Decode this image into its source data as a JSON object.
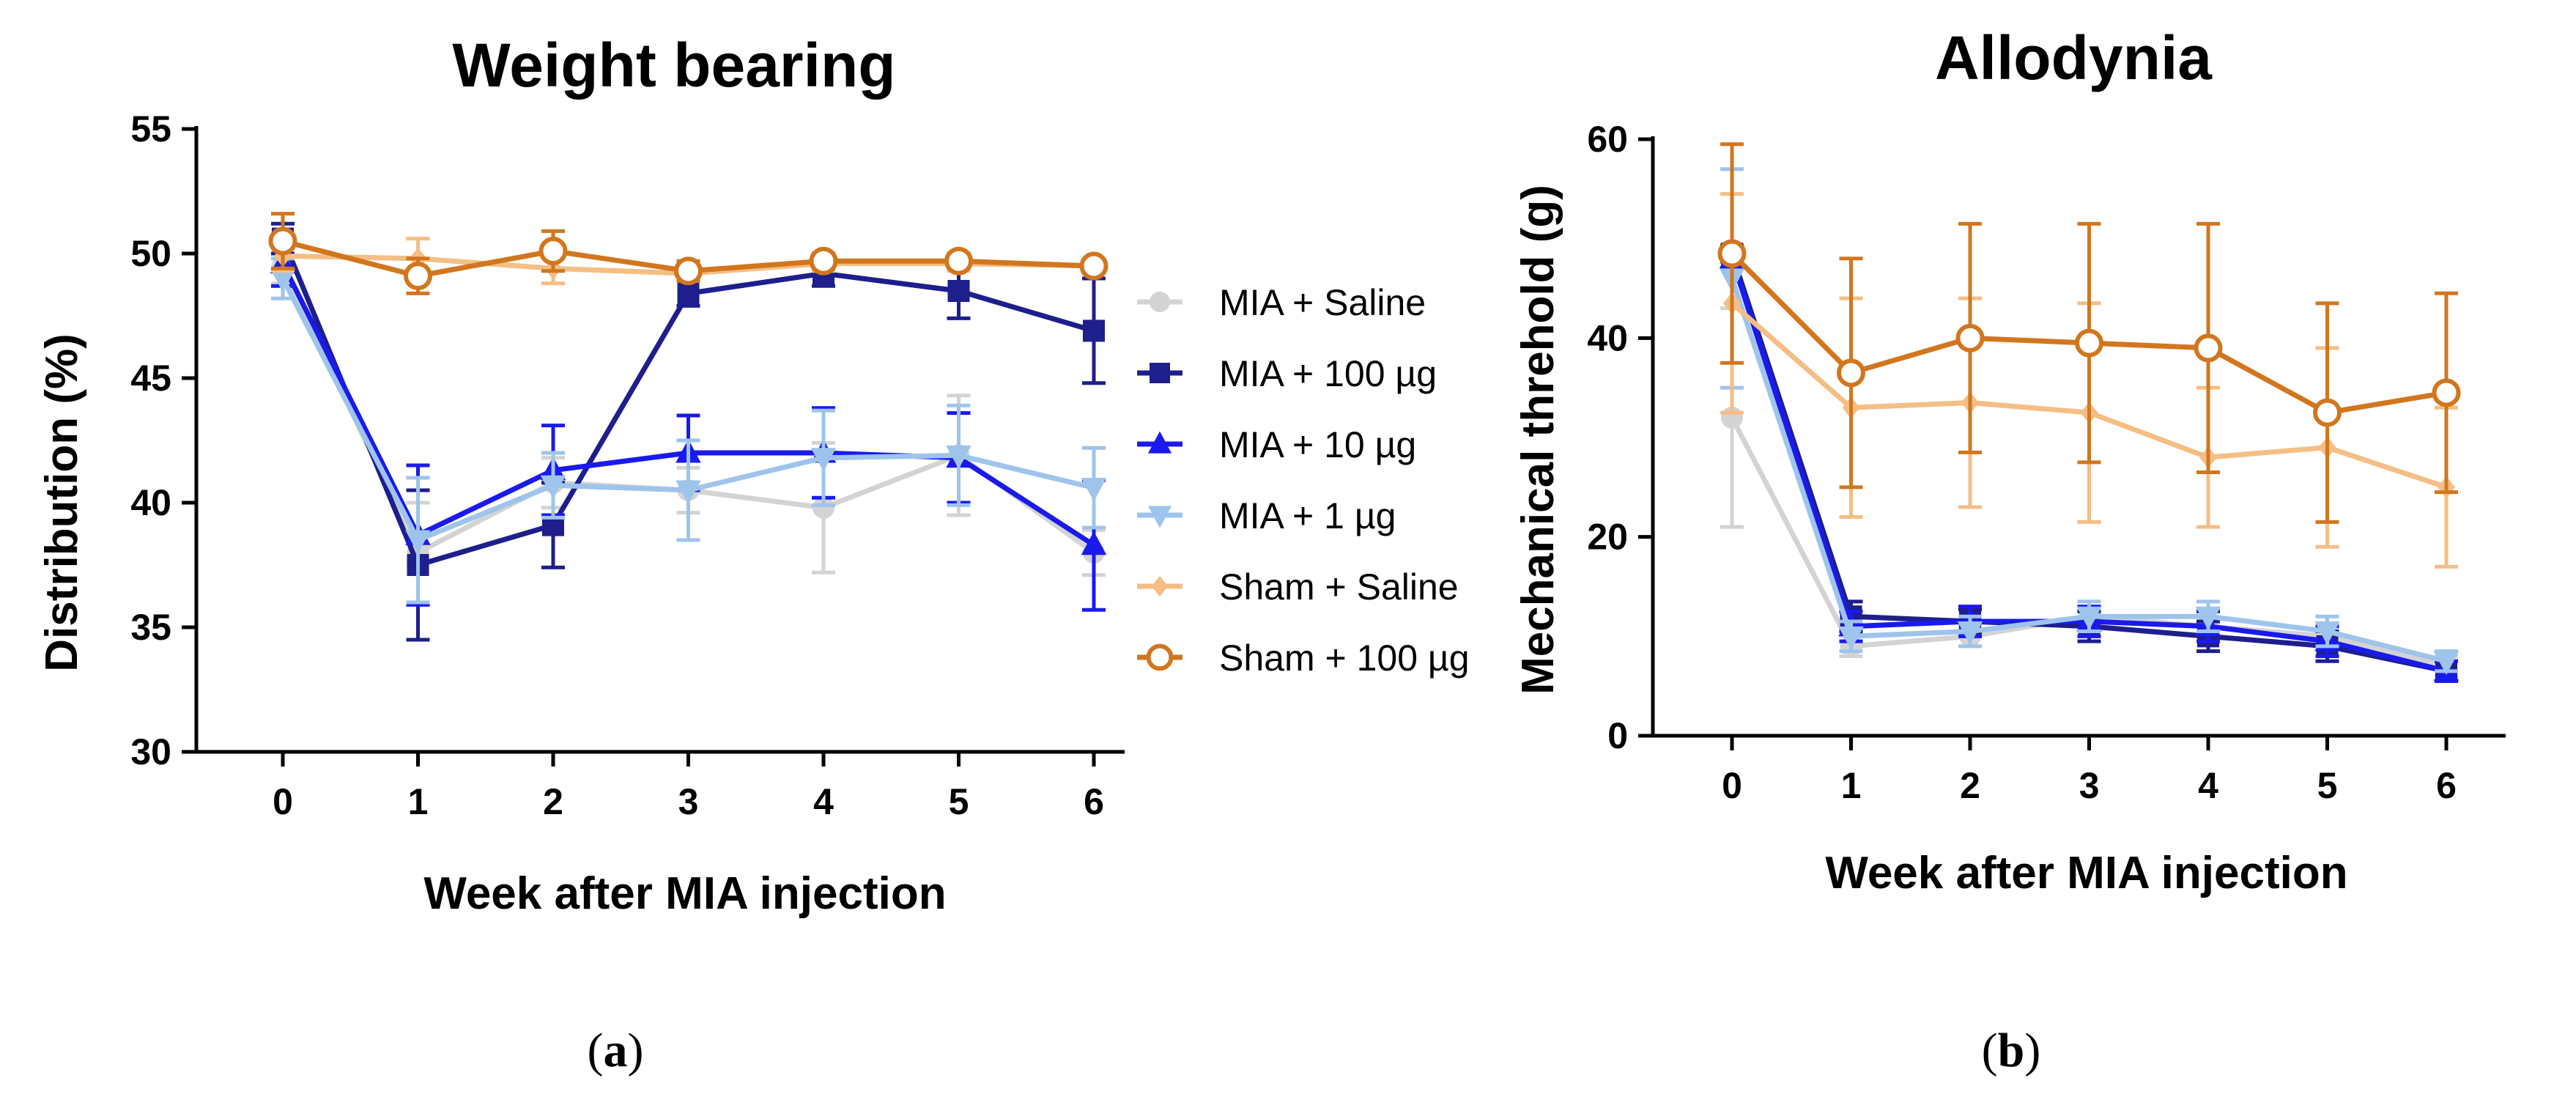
{
  "chart_data": [
    {
      "type": "line",
      "title": "Weight bearing",
      "xlabel": "Week after MIA injection",
      "ylabel": "Distribution (%)",
      "x": [
        0,
        1,
        2,
        3,
        4,
        5,
        6
      ],
      "ylim": [
        30,
        55
      ],
      "yticks": [
        30,
        35,
        40,
        45,
        50,
        55
      ],
      "panel_label": "a",
      "series": [
        {
          "name": "MIA + Saline",
          "color": "#d3d3d3",
          "marker": "circle-filled",
          "values": [
            49.5,
            38.0,
            40.8,
            40.5,
            39.8,
            41.9,
            38.0
          ],
          "errors": [
            0.7,
            2.0,
            1.0,
            0.9,
            2.6,
            2.4,
            0.9
          ]
        },
        {
          "name": "MIA + 100 µg",
          "color": "#1e1e8c",
          "marker": "square",
          "values": [
            50.6,
            37.5,
            39.1,
            48.4,
            49.2,
            48.5,
            46.9
          ],
          "errors": [
            0.6,
            3.0,
            1.7,
            0.5,
            0.5,
            1.1,
            2.1
          ]
        },
        {
          "name": "MIA + 10 µg",
          "color": "#1a1aee",
          "marker": "triangle-up",
          "values": [
            49.6,
            38.7,
            41.3,
            42.0,
            42.0,
            41.8,
            38.3
          ],
          "errors": [
            0.9,
            2.8,
            1.8,
            1.5,
            1.8,
            1.8,
            2.6
          ]
        },
        {
          "name": "MIA + 1 µg",
          "color": "#9ec4ec",
          "marker": "triangle-down",
          "values": [
            49.0,
            38.5,
            40.7,
            40.5,
            41.8,
            41.9,
            40.6
          ],
          "errors": [
            0.8,
            2.5,
            1.3,
            2.0,
            1.9,
            2.0,
            1.6
          ]
        },
        {
          "name": "Sham + Saline",
          "color": "#f4be84",
          "marker": "diamond",
          "values": [
            49.9,
            49.8,
            49.4,
            49.2,
            49.6,
            49.6,
            49.5
          ],
          "errors": [
            0.6,
            0.8,
            0.6,
            0.3,
            0.3,
            0.3,
            0.2
          ]
        },
        {
          "name": "Sham + 100 µg",
          "color": "#d2761e",
          "marker": "circle-open",
          "values": [
            50.5,
            49.1,
            50.1,
            49.3,
            49.7,
            49.7,
            49.5
          ],
          "errors": [
            1.1,
            0.7,
            0.8,
            0.4,
            0.3,
            0.3,
            0.2
          ]
        }
      ]
    },
    {
      "type": "line",
      "title": "Allodynia",
      "xlabel": "Week after MIA injection",
      "ylabel": "Mechanical threhold (g)",
      "x": [
        0,
        1,
        2,
        3,
        4,
        5,
        6
      ],
      "ylim": [
        0,
        60
      ],
      "yticks": [
        0,
        20,
        40,
        60
      ],
      "panel_label": "b",
      "series": [
        {
          "name": "MIA + Saline",
          "color": "#d3d3d3",
          "marker": "circle-filled",
          "values": [
            32,
            9,
            10,
            12,
            11,
            10,
            7
          ],
          "errors": [
            11,
            1,
            1,
            1.5,
            1.5,
            1,
            1
          ]
        },
        {
          "name": "MIA + 100 µg",
          "color": "#1e1e8c",
          "marker": "square",
          "values": [
            48.5,
            12,
            11.5,
            11,
            10,
            9,
            6.5
          ],
          "errors": [
            0.8,
            1.5,
            1.2,
            1.5,
            1.5,
            1.5,
            1
          ]
        },
        {
          "name": "MIA + 10 µg",
          "color": "#1a1aee",
          "marker": "triangle-up",
          "values": [
            48,
            11,
            11.5,
            11.5,
            11,
            9.5,
            6.5
          ],
          "errors": [
            1,
            1.5,
            1.5,
            1.5,
            1.5,
            1.5,
            1
          ]
        },
        {
          "name": "MIA + 1 µg",
          "color": "#9ec4ec",
          "marker": "triangle-down",
          "values": [
            46,
            10,
            10.5,
            12,
            12,
            10.5,
            7.5
          ],
          "errors": [
            11,
            1.5,
            1.5,
            1.5,
            1.5,
            1.5,
            1
          ]
        },
        {
          "name": "Sham + Saline",
          "color": "#f4be84",
          "marker": "diamond",
          "values": [
            43.5,
            33,
            33.5,
            32.5,
            28,
            29,
            25
          ],
          "errors": [
            11,
            11,
            10.5,
            11,
            7,
            10,
            8
          ]
        },
        {
          "name": "Sham + 100 µg",
          "color": "#d2761e",
          "marker": "circle-open",
          "values": [
            48.5,
            36.5,
            40,
            39.5,
            39,
            32.5,
            34.5
          ],
          "errors": [
            11,
            11.5,
            11.5,
            12,
            12.5,
            11,
            10
          ]
        }
      ]
    }
  ]
}
